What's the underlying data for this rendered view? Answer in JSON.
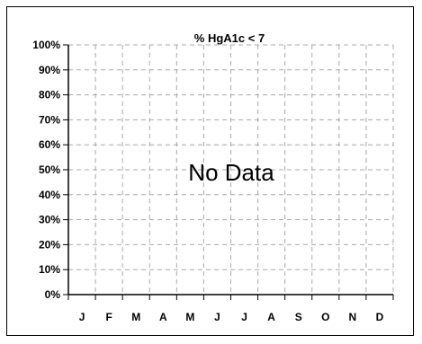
{
  "chart_data": {
    "type": "line",
    "title": "%  HgA1c < 7",
    "categories": [
      "J",
      "F",
      "M",
      "A",
      "M",
      "J",
      "J",
      "A",
      "S",
      "O",
      "N",
      "D"
    ],
    "series": [],
    "ylim": [
      0,
      100
    ],
    "yticks": [
      "0%",
      "10%",
      "20%",
      "30%",
      "40%",
      "50%",
      "60%",
      "70%",
      "80%",
      "90%",
      "100%"
    ],
    "grid": true,
    "no_data_text": "No Data"
  }
}
